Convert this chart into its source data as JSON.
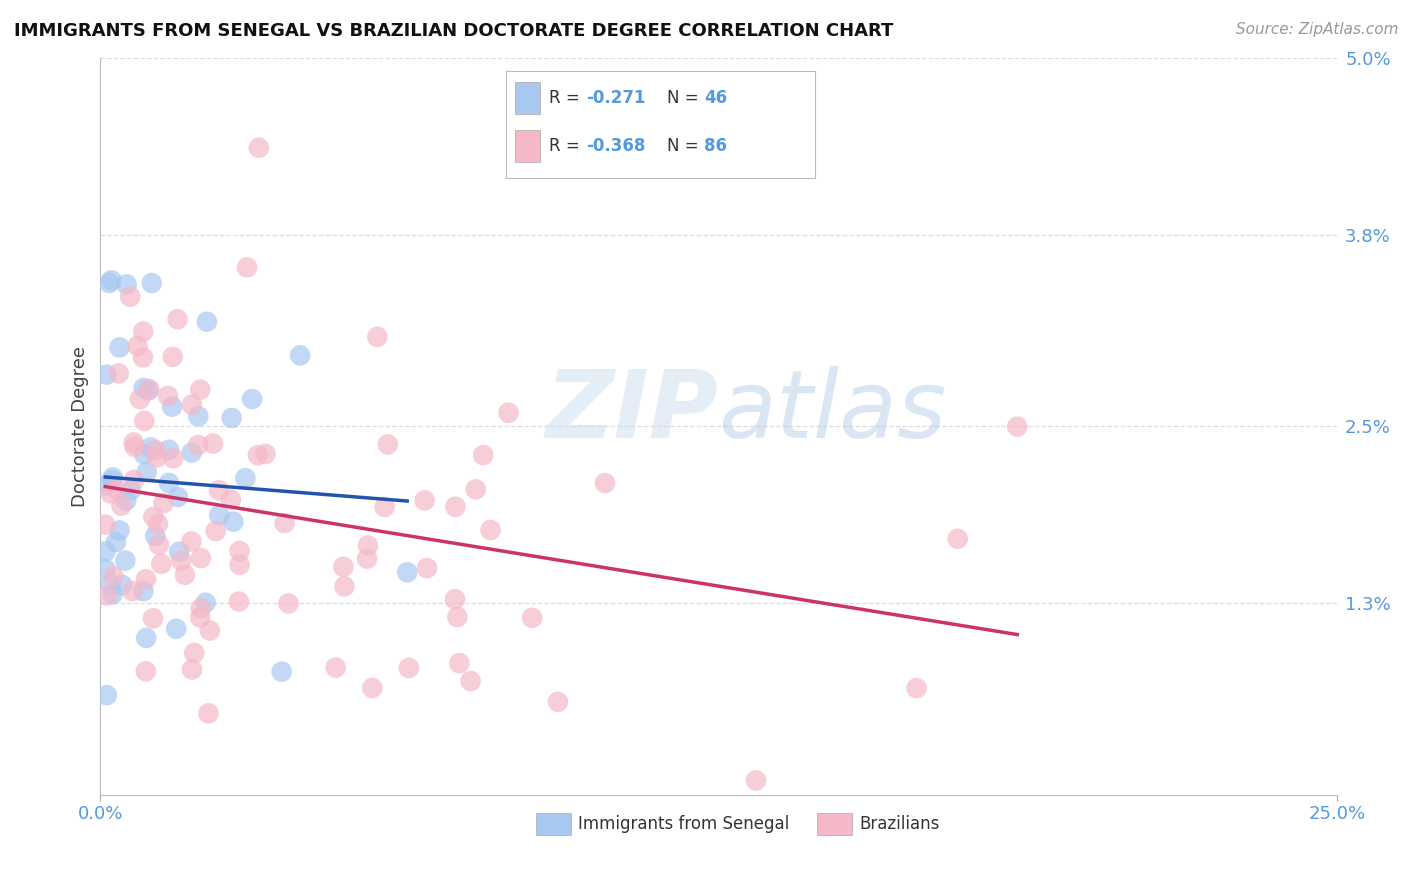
{
  "title": "IMMIGRANTS FROM SENEGAL VS BRAZILIAN DOCTORATE DEGREE CORRELATION CHART",
  "source": "Source: ZipAtlas.com",
  "ylabel": "Doctorate Degree",
  "xlim": [
    0.0,
    0.25
  ],
  "ylim": [
    0.0,
    0.05
  ],
  "yticks": [
    0.013,
    0.025,
    0.038,
    0.05
  ],
  "ytick_labels": [
    "1.3%",
    "2.5%",
    "3.8%",
    "5.0%"
  ],
  "xtick_labels": [
    "0.0%",
    "25.0%"
  ],
  "legend_r1": "R = -0.271",
  "legend_n1": "N = 46",
  "legend_r2": "R = -0.368",
  "legend_n2": "N = 86",
  "color_senegal": "#A8C8F0",
  "color_brazil": "#F5B8C8",
  "color_line_senegal": "#2255AA",
  "color_line_brazil": "#CC3366",
  "background_color": "#FFFFFF",
  "watermark_color": "#D0E0F0",
  "grid_color": "#DDDDDD",
  "tick_color": "#5599DD",
  "title_color": "#111111",
  "source_color": "#999999",
  "ylabel_color": "#444444",
  "senegal_seed": 101,
  "brazil_seed": 202
}
